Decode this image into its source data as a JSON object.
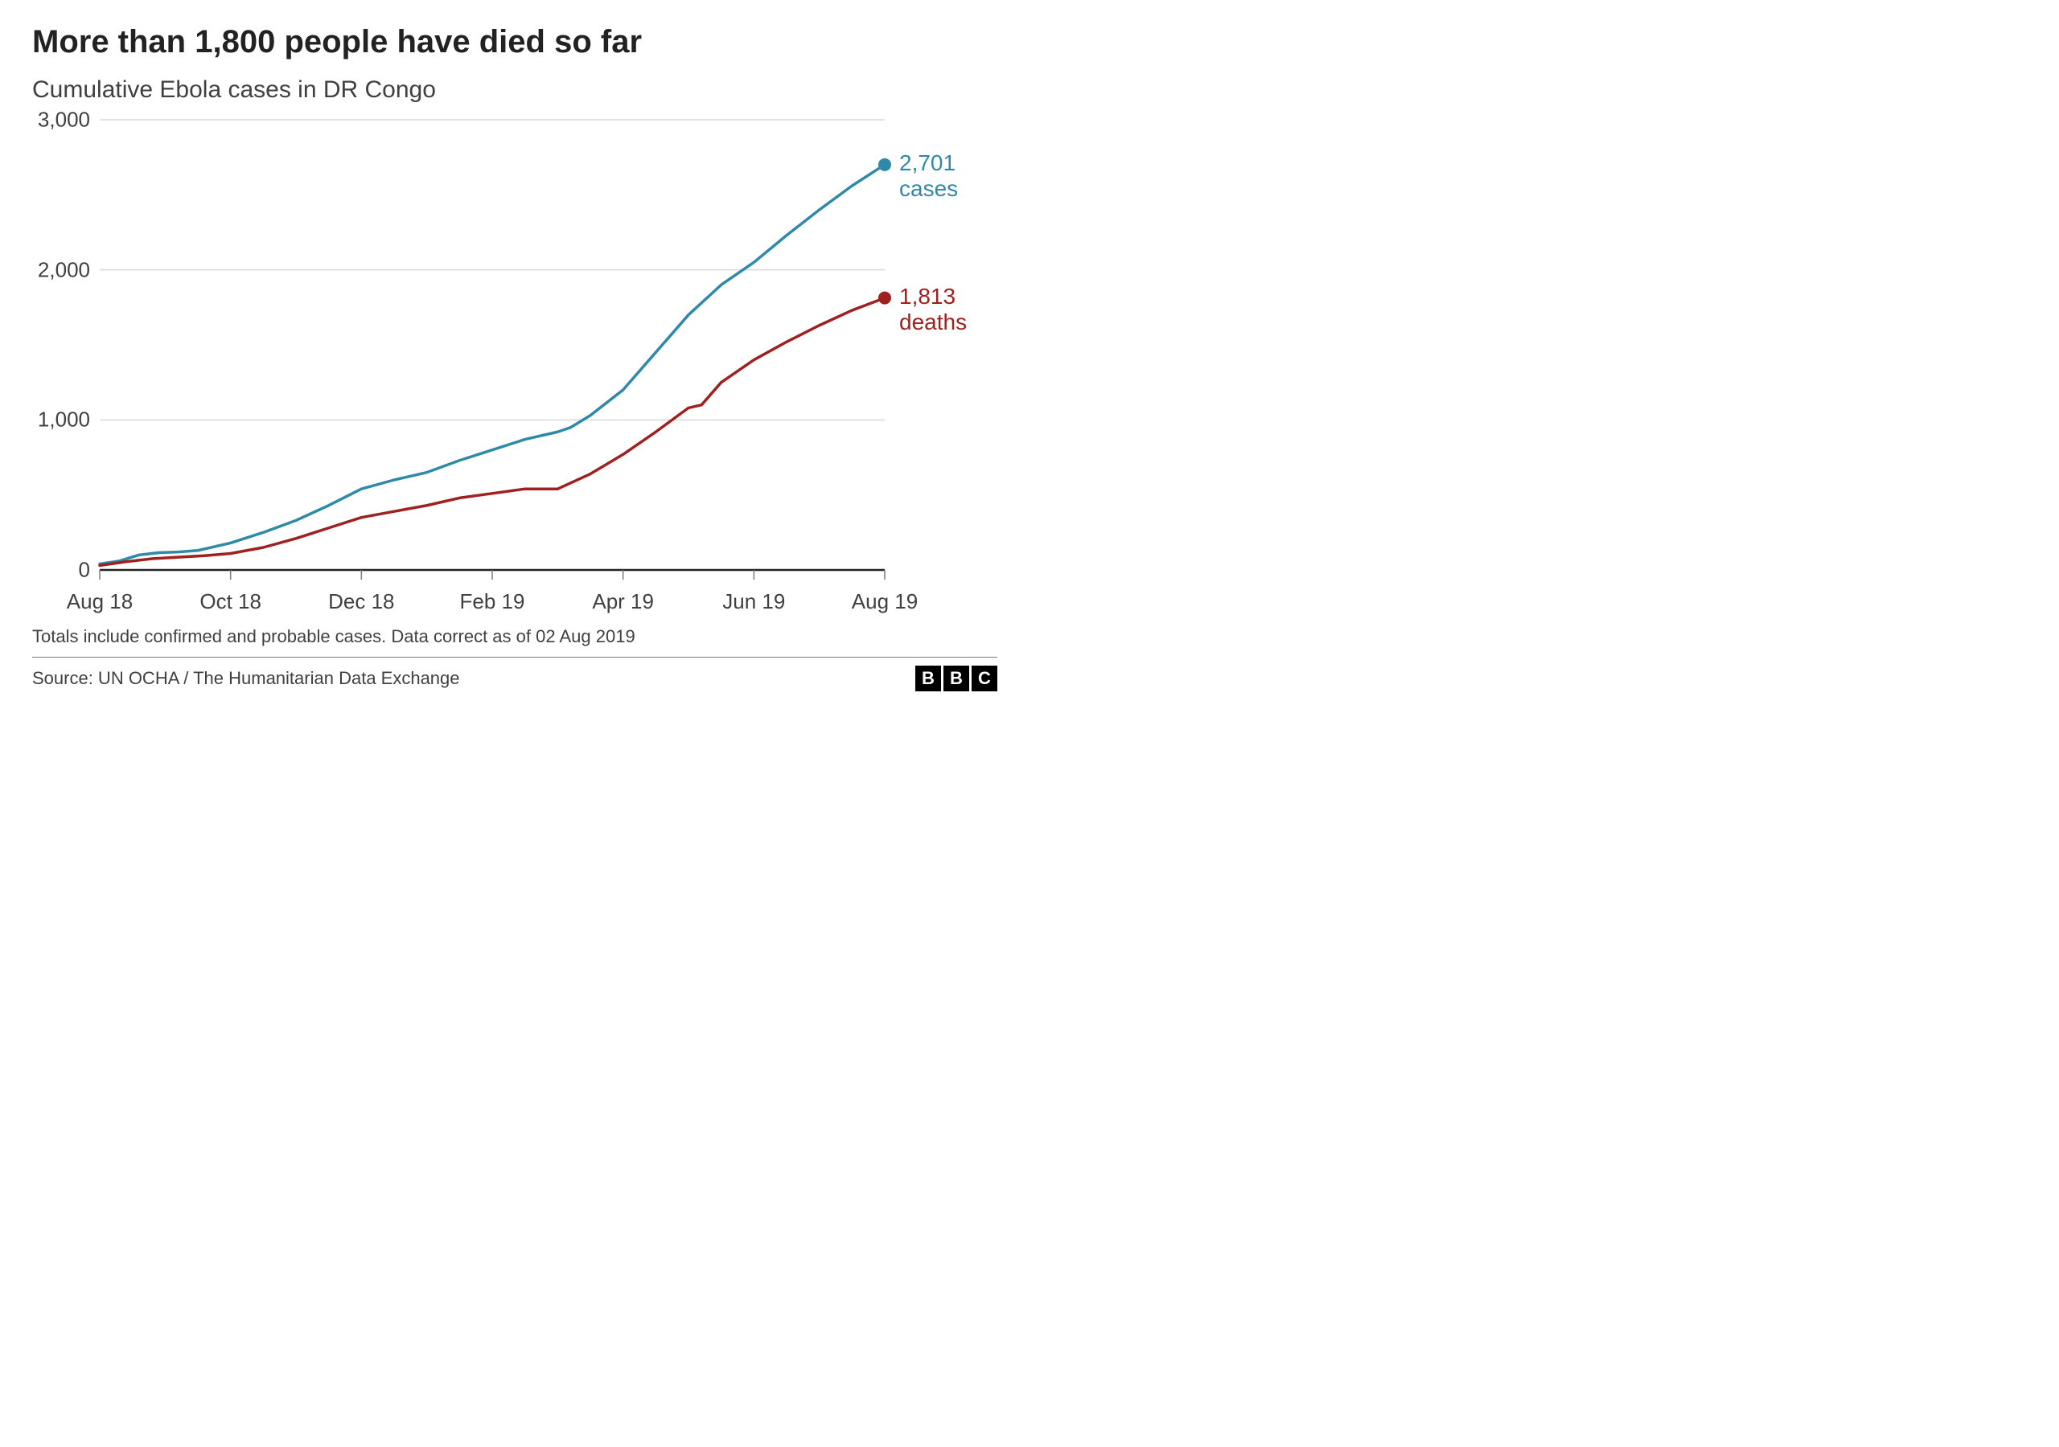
{
  "title": "More than 1,800 people have died so far",
  "subtitle": "Cumulative Ebola cases in DR Congo",
  "chart": {
    "type": "line",
    "background_color": "#ffffff",
    "grid_color": "#d9d9d9",
    "axis_color": "#222222",
    "tick_color": "#7a7a7a",
    "label_color": "#404040",
    "label_fontsize": 26,
    "title_fontsize": 40,
    "subtitle_fontsize": 30,
    "ylim": [
      0,
      3000
    ],
    "yticks": [
      0,
      1000,
      2000,
      3000
    ],
    "ytick_labels": [
      "0",
      "1,000",
      "2,000",
      "3,000"
    ],
    "x_start": 0,
    "x_end": 12,
    "xticks": [
      0,
      2,
      4,
      6,
      8,
      10,
      12
    ],
    "xtick_labels": [
      "Aug 18",
      "Oct 18",
      "Dec 18",
      "Feb 19",
      "Apr 19",
      "Jun 19",
      "Aug 19"
    ],
    "line_width": 3.5,
    "marker_radius": 8,
    "series": [
      {
        "name": "cases",
        "color": "#2f89a8",
        "end_label_value": "2,701",
        "end_label_text": "cases",
        "data": [
          [
            0,
            40
          ],
          [
            0.3,
            60
          ],
          [
            0.6,
            100
          ],
          [
            0.9,
            115
          ],
          [
            1.2,
            120
          ],
          [
            1.5,
            130
          ],
          [
            2,
            180
          ],
          [
            2.5,
            250
          ],
          [
            3,
            330
          ],
          [
            3.5,
            430
          ],
          [
            4,
            540
          ],
          [
            4.5,
            600
          ],
          [
            5,
            650
          ],
          [
            5.5,
            730
          ],
          [
            6,
            800
          ],
          [
            6.5,
            870
          ],
          [
            7,
            920
          ],
          [
            7.2,
            950
          ],
          [
            7.5,
            1030
          ],
          [
            8,
            1200
          ],
          [
            8.5,
            1450
          ],
          [
            9,
            1700
          ],
          [
            9.5,
            1900
          ],
          [
            10,
            2050
          ],
          [
            10.5,
            2230
          ],
          [
            11,
            2400
          ],
          [
            11.5,
            2560
          ],
          [
            12,
            2701
          ]
        ]
      },
      {
        "name": "deaths",
        "color": "#a01f1f",
        "end_label_value": "1,813",
        "end_label_text": "deaths",
        "data": [
          [
            0,
            30
          ],
          [
            0.4,
            55
          ],
          [
            0.8,
            75
          ],
          [
            1.2,
            85
          ],
          [
            1.6,
            95
          ],
          [
            2,
            110
          ],
          [
            2.5,
            150
          ],
          [
            3,
            210
          ],
          [
            3.5,
            280
          ],
          [
            4,
            350
          ],
          [
            4.5,
            390
          ],
          [
            5,
            430
          ],
          [
            5.5,
            480
          ],
          [
            6,
            510
          ],
          [
            6.5,
            540
          ],
          [
            7,
            540
          ],
          [
            7.1,
            560
          ],
          [
            7.5,
            640
          ],
          [
            8,
            770
          ],
          [
            8.5,
            920
          ],
          [
            9,
            1080
          ],
          [
            9.2,
            1100
          ],
          [
            9.5,
            1250
          ],
          [
            10,
            1400
          ],
          [
            10.5,
            1520
          ],
          [
            11,
            1630
          ],
          [
            11.5,
            1730
          ],
          [
            12,
            1813
          ]
        ]
      }
    ]
  },
  "footnote": "Totals include confirmed and probable cases. Data correct as of 02 Aug 2019",
  "source": "Source: UN OCHA / The Humanitarian Data Exchange",
  "logo_letters": [
    "B",
    "B",
    "C"
  ]
}
